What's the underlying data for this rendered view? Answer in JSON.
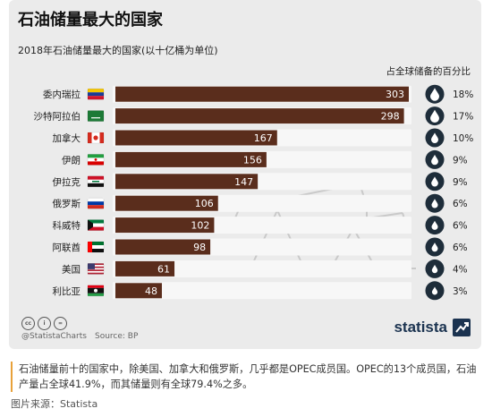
{
  "title": "石油储量最大的国家",
  "subtitle": "2018年石油储量最大的国家(以十亿桶为单位)",
  "share_header": "占全球储备的百分比",
  "credit": "@StatistaCharts",
  "source": "Source: BP",
  "brand": "statista",
  "caption": "石油储量前十的国家中，除美国、加拿大和俄罗斯，几乎都是OPEC成员国。OPEC的13个成员国，石油产量占全球41.9%，而其储量则有全球79.4%之多。",
  "image_source": "图片来源：Statista",
  "colors": {
    "bar": "#5a2d1c",
    "bar_bg": "#f7f7f7",
    "drop_circle": "#1e2d3a",
    "accent": "#e8a13a"
  },
  "chart_data": {
    "type": "bar",
    "orientation": "horizontal",
    "categories": [
      "委内瑞拉",
      "沙特阿拉伯",
      "加拿大",
      "伊朗",
      "伊拉克",
      "俄罗斯",
      "科威特",
      "阿联酋",
      "美国",
      "利比亚"
    ],
    "values": [
      303,
      298,
      167,
      156,
      147,
      106,
      102,
      98,
      61,
      48
    ],
    "share_labels": [
      "18%",
      "17%",
      "10%",
      "9%",
      "9%",
      "6%",
      "6%",
      "6%",
      "4%",
      "3%"
    ],
    "flags": [
      "venezuela-flag",
      "saudi-arabia-flag",
      "canada-flag",
      "iran-flag",
      "iraq-flag",
      "russia-flag",
      "kuwait-flag",
      "uae-flag",
      "usa-flag",
      "libya-flag"
    ],
    "xlim": [
      0,
      303
    ],
    "title": "石油储量最大的国家",
    "subtitle": "2018年石油储量最大的国家(以十亿桶为单位)"
  }
}
